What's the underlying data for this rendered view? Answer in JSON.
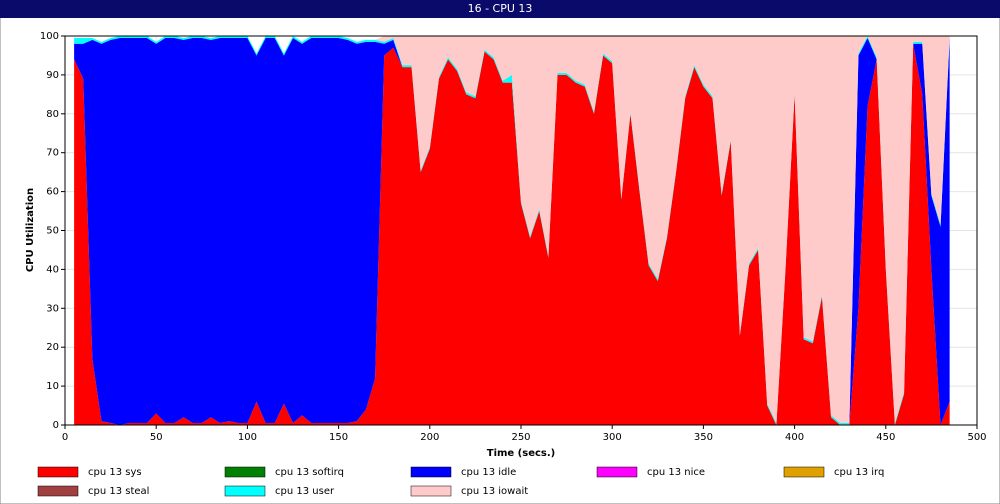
{
  "chart_data": {
    "type": "stacked-area",
    "title": "16 - CPU 13",
    "xlabel": "Time (secs.)",
    "ylabel": "CPU Utilization",
    "xlim": [
      0,
      500
    ],
    "xticks": [
      0,
      50,
      100,
      150,
      200,
      250,
      300,
      350,
      400,
      450,
      500
    ],
    "ylim": [
      0,
      100
    ],
    "yticks": [
      0,
      10,
      20,
      30,
      40,
      50,
      60,
      70,
      80,
      90,
      100
    ],
    "grid": true,
    "x": [
      5,
      10,
      15,
      20,
      25,
      30,
      35,
      40,
      45,
      50,
      55,
      60,
      65,
      70,
      75,
      80,
      85,
      90,
      95,
      100,
      105,
      110,
      115,
      120,
      125,
      130,
      135,
      140,
      145,
      150,
      155,
      160,
      165,
      170,
      175,
      180,
      185,
      190,
      195,
      200,
      205,
      210,
      215,
      220,
      225,
      230,
      235,
      240,
      245,
      250,
      255,
      260,
      265,
      270,
      275,
      280,
      285,
      290,
      295,
      300,
      305,
      310,
      315,
      320,
      325,
      330,
      335,
      340,
      345,
      350,
      355,
      360,
      365,
      370,
      375,
      380,
      385,
      390,
      395,
      400,
      405,
      410,
      415,
      420,
      425,
      430,
      435,
      440,
      445,
      450,
      455,
      460,
      465,
      470,
      475,
      480,
      485
    ],
    "series": [
      {
        "name": "cpu 13 sys",
        "color": "#ff0000",
        "values": [
          94,
          89,
          17,
          1,
          0.5,
          0,
          0.5,
          0.5,
          0.5,
          3,
          0.5,
          0.5,
          2,
          0.5,
          0.5,
          2,
          0.5,
          1,
          0.5,
          0.5,
          6,
          0.5,
          0.5,
          5.5,
          0.5,
          2.5,
          0.5,
          0.5,
          0.5,
          0.5,
          0.5,
          1,
          4,
          12,
          95,
          97,
          92,
          92,
          65,
          71,
          89,
          94,
          91,
          85,
          84,
          96,
          94,
          88,
          88,
          57,
          48,
          55,
          43,
          90,
          90,
          88,
          87,
          80,
          95,
          93,
          58,
          80,
          60,
          41,
          37,
          48,
          65,
          84,
          92,
          87,
          84,
          59,
          73,
          23,
          41,
          45,
          5,
          0,
          40,
          85,
          22,
          21,
          33,
          2,
          0,
          0,
          30,
          82,
          94,
          40,
          0,
          8,
          98,
          85,
          40,
          0,
          6
        ]
      },
      {
        "name": "cpu 13 softirq",
        "color": "#008000",
        "values": [
          0,
          0,
          0,
          0,
          0,
          0,
          0,
          0,
          0,
          0,
          0,
          0,
          0,
          0,
          0,
          0,
          0,
          0,
          0,
          0,
          0,
          0,
          0,
          0,
          0,
          0,
          0,
          0,
          0,
          0,
          0,
          0,
          0,
          0,
          0,
          0,
          0,
          0,
          0,
          0,
          0,
          0,
          0,
          0,
          0,
          0,
          0,
          0,
          0,
          0,
          0,
          0,
          0,
          0,
          0,
          0,
          0,
          0,
          0,
          0,
          0,
          0,
          0,
          0,
          0,
          0,
          0,
          0,
          0,
          0,
          0,
          0,
          0,
          0,
          0,
          0,
          0,
          0,
          0,
          0,
          0,
          0,
          0,
          0,
          0,
          0,
          0,
          0,
          0,
          0,
          0,
          0,
          0,
          0,
          0,
          0,
          0
        ]
      },
      {
        "name": "cpu 13 idle",
        "color": "#0000ff",
        "values": [
          4,
          9,
          82,
          97,
          98.5,
          99.5,
          99,
          99,
          99,
          95,
          99,
          99,
          97,
          99,
          99,
          97,
          99,
          98.5,
          99,
          99,
          89,
          99,
          99,
          89.5,
          99,
          95.5,
          99,
          99,
          99,
          99,
          98.5,
          97,
          94.5,
          86.5,
          3,
          2,
          0,
          0,
          0,
          0,
          0,
          0,
          0,
          0,
          0,
          0,
          0,
          0,
          0,
          0,
          0,
          0,
          0,
          0,
          0,
          0,
          0,
          0,
          0,
          0,
          0,
          0,
          0,
          0,
          0,
          0,
          0,
          0,
          0,
          0,
          0,
          0,
          0,
          0,
          0,
          0,
          0,
          0,
          0,
          0,
          0,
          0,
          0,
          0,
          0,
          0,
          65,
          17.5,
          0,
          0,
          0,
          0,
          0,
          13,
          19,
          51,
          93.5
        ]
      },
      {
        "name": "cpu 13 nice",
        "color": "#ff00ff",
        "values": [
          0,
          0,
          0,
          0,
          0,
          0,
          0,
          0,
          0,
          0,
          0,
          0,
          0,
          0,
          0,
          0,
          0,
          0,
          0,
          0,
          0,
          0,
          0,
          0,
          0,
          0,
          0,
          0,
          0,
          0,
          0,
          0,
          0,
          0,
          0,
          0,
          0,
          0,
          0,
          0,
          0,
          0,
          0,
          0,
          0,
          0,
          0,
          0,
          0,
          0,
          0,
          0,
          0,
          0,
          0,
          0,
          0,
          0,
          0,
          0,
          0,
          0,
          0,
          0,
          0,
          0,
          0,
          0,
          0,
          0,
          0,
          0,
          0,
          0,
          0,
          0,
          0,
          0,
          0,
          0,
          0,
          0,
          0,
          0,
          0,
          0,
          0,
          0,
          0,
          0,
          0,
          0,
          0,
          0,
          0,
          0,
          0
        ]
      },
      {
        "name": "cpu 13 irq",
        "color": "#e0a000",
        "values": [
          0,
          0,
          0,
          0,
          0,
          0,
          0,
          0,
          0,
          0,
          0,
          0,
          0,
          0,
          0,
          0,
          0,
          0,
          0,
          0,
          0,
          0,
          0,
          0,
          0,
          0,
          0,
          0,
          0,
          0,
          0,
          0,
          0,
          0,
          0,
          0,
          0,
          0,
          0,
          0,
          0,
          0,
          0,
          0,
          0,
          0,
          0,
          0,
          0,
          0,
          0,
          0,
          0,
          0,
          0,
          0,
          0,
          0,
          0,
          0,
          0,
          0,
          0,
          0,
          0,
          0,
          0,
          0,
          0,
          0,
          0,
          0,
          0,
          0,
          0,
          0,
          0,
          0,
          0,
          0,
          0,
          0,
          0,
          0,
          0,
          0,
          0,
          0,
          0,
          0,
          0,
          0,
          0,
          0,
          0,
          0,
          0
        ]
      },
      {
        "name": "cpu 13 steal",
        "color": "#a04040",
        "values": [
          0,
          0,
          0,
          0,
          0,
          0,
          0,
          0,
          0,
          0,
          0,
          0,
          0,
          0,
          0,
          0,
          0,
          0,
          0,
          0,
          0,
          0,
          0,
          0,
          0,
          0,
          0,
          0,
          0,
          0,
          0,
          0,
          0,
          0,
          0,
          0,
          0,
          0,
          0,
          0,
          0,
          0,
          0,
          0,
          0,
          0,
          0,
          0,
          0,
          0,
          0,
          0,
          0,
          0,
          0,
          0,
          0,
          0,
          0,
          0,
          0,
          0,
          0,
          0,
          0,
          0,
          0,
          0,
          0,
          0,
          0,
          0,
          0,
          0,
          0,
          0,
          0,
          0,
          0,
          0,
          0,
          0,
          0,
          0,
          0,
          0,
          0,
          0,
          0,
          0,
          0,
          0,
          0,
          0,
          0,
          0,
          0
        ]
      },
      {
        "name": "cpu 13 user",
        "color": "#00ffff",
        "values": [
          1.5,
          1.5,
          0.5,
          0.5,
          0.5,
          0.5,
          0.5,
          0.5,
          0.5,
          0.5,
          0.5,
          0.5,
          0.5,
          0.5,
          0.5,
          0.5,
          0.5,
          0.5,
          0.5,
          0.5,
          0.5,
          0.5,
          0.5,
          0.5,
          0.5,
          0.5,
          0.5,
          0.5,
          0.5,
          0.5,
          0.5,
          0.5,
          0.5,
          0.5,
          0.5,
          0.5,
          0.5,
          0.5,
          0.5,
          0.5,
          0.5,
          0.5,
          0.5,
          0.5,
          0.5,
          0.5,
          0.5,
          0.5,
          2,
          0.5,
          0.5,
          0.5,
          0.5,
          0.5,
          0.5,
          0.5,
          0.5,
          0.5,
          0.5,
          0.5,
          0.5,
          0.5,
          0.5,
          0.5,
          0.5,
          0.5,
          0.5,
          0.5,
          0.5,
          0.5,
          0.5,
          0.5,
          0.5,
          0.5,
          0.5,
          0.5,
          0.5,
          0.5,
          0.5,
          0.5,
          0.5,
          0.5,
          0.5,
          0.5,
          0.5,
          0.5,
          0.5,
          0.5,
          0.5,
          0.5,
          0.5,
          0.5,
          0.5,
          0.5,
          0.5,
          0.5,
          0.5
        ]
      },
      {
        "name": "cpu 13 iowait",
        "color": "#ffcaca",
        "values": [
          0,
          0,
          0,
          0,
          0,
          0,
          0,
          0,
          0,
          0,
          0,
          0,
          0,
          0,
          0,
          0,
          0,
          0,
          0,
          0,
          0,
          0,
          0,
          0,
          0,
          0,
          0,
          0,
          0,
          0,
          0,
          0,
          0,
          0,
          1.5,
          0.5,
          7.5,
          7.5,
          34.5,
          28.5,
          10.5,
          5.5,
          8.5,
          14.5,
          15.5,
          3.5,
          5.5,
          11.5,
          10,
          42.5,
          51.5,
          44.5,
          56.5,
          9.5,
          9.5,
          11.5,
          12.5,
          19.5,
          4.5,
          6.5,
          41.5,
          19.5,
          39.5,
          58.5,
          62.5,
          51.5,
          34.5,
          15.5,
          7.5,
          12.5,
          15.5,
          40.5,
          26.5,
          76.5,
          58.5,
          54.5,
          94.5,
          99.5,
          59.5,
          14.5,
          77.5,
          78.5,
          66.5,
          97.5,
          99.5,
          99.5,
          4.5,
          0,
          5.5,
          59.5,
          99.5,
          91.5,
          1.5,
          1.5,
          40.5,
          48.5,
          0
        ]
      }
    ]
  }
}
